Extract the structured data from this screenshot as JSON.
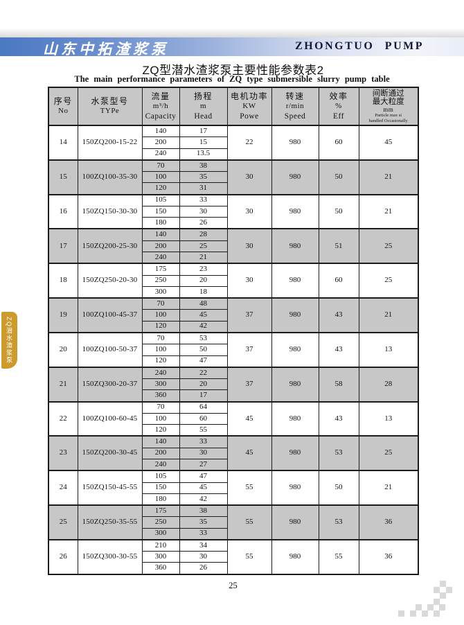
{
  "page": {
    "brand_cn": "山东中拓渣浆泵",
    "brand_en": "ZHONGTUO PUMP",
    "title_cn": "ZQ型潜水渣浆泵主要性能参数表2",
    "title_en": "The main performance parameters of ZQ type submersible slurry pump table",
    "side_tab": "ZQ潜水渣浆泵",
    "page_number": "25"
  },
  "colors": {
    "bar_blue": "#4a78c2",
    "header_gray": "#c7c7c7",
    "tab_orange": "#cd9a2e",
    "motif_gray": "#d9d9d9",
    "brand_en_navy": "#14163a"
  },
  "table": {
    "headers": [
      {
        "key": "no",
        "lines": [
          "序号",
          "No"
        ]
      },
      {
        "key": "type",
        "lines": [
          "水泵型号",
          "TYPe"
        ]
      },
      {
        "key": "capacity",
        "lines": [
          "流量",
          "m³/h",
          "Capacity"
        ]
      },
      {
        "key": "head",
        "lines": [
          "扬程",
          "m",
          "Head"
        ]
      },
      {
        "key": "power",
        "lines": [
          "电机功率",
          "KW",
          "Powe"
        ],
        "bold": true
      },
      {
        "key": "speed",
        "lines": [
          "转速",
          "r/min",
          "Speed"
        ]
      },
      {
        "key": "eff",
        "lines": [
          "效率",
          "%",
          "Eff"
        ]
      },
      {
        "key": "particle",
        "lines": [
          "间断通过",
          "最大粒度",
          "mm"
        ],
        "small_lines": [
          "Particle max si",
          "handled Occasionally"
        ],
        "bold": true
      }
    ],
    "rows": [
      {
        "no": "14",
        "type": "150ZQ200-15-22",
        "capacities": [
          "140",
          "200",
          "240"
        ],
        "heads": [
          "17",
          "15",
          "13.5"
        ],
        "power": "22",
        "speed": "980",
        "eff": "60",
        "particle": "45",
        "shaded": false
      },
      {
        "no": "15",
        "type": "100ZQ100-35-30",
        "capacities": [
          "70",
          "100",
          "120"
        ],
        "heads": [
          "38",
          "35",
          "31"
        ],
        "power": "30",
        "speed": "980",
        "eff": "50",
        "particle": "21",
        "shaded": true
      },
      {
        "no": "16",
        "type": "150ZQ150-30-30",
        "capacities": [
          "105",
          "150",
          "180"
        ],
        "heads": [
          "33",
          "30",
          "26"
        ],
        "power": "30",
        "speed": "980",
        "eff": "50",
        "particle": "21",
        "shaded": false
      },
      {
        "no": "17",
        "type": "150ZQ200-25-30",
        "capacities": [
          "140",
          "200",
          "240"
        ],
        "heads": [
          "28",
          "25",
          "21"
        ],
        "power": "30",
        "speed": "980",
        "eff": "51",
        "particle": "25",
        "shaded": true
      },
      {
        "no": "18",
        "type": "150ZQ250-20-30",
        "capacities": [
          "175",
          "250",
          "300"
        ],
        "heads": [
          "23",
          "20",
          "18"
        ],
        "power": "30",
        "speed": "980",
        "eff": "60",
        "particle": "25",
        "shaded": false
      },
      {
        "no": "19",
        "type": "100ZQ100-45-37",
        "capacities": [
          "70",
          "100",
          "120"
        ],
        "heads": [
          "48",
          "45",
          "42"
        ],
        "power": "37",
        "speed": "980",
        "eff": "43",
        "particle": "21",
        "shaded": true
      },
      {
        "no": "20",
        "type": "100ZQ100-50-37",
        "capacities": [
          "70",
          "100",
          "120"
        ],
        "heads": [
          "53",
          "50",
          "47"
        ],
        "power": "37",
        "speed": "980",
        "eff": "43",
        "particle": "13",
        "shaded": false
      },
      {
        "no": "21",
        "type": "150ZQ300-20-37",
        "capacities": [
          "240",
          "300",
          "360"
        ],
        "heads": [
          "22",
          "20",
          "17"
        ],
        "power": "37",
        "speed": "980",
        "eff": "58",
        "particle": "28",
        "shaded": true
      },
      {
        "no": "22",
        "type": "100ZQ100-60-45",
        "capacities": [
          "70",
          "100",
          "120"
        ],
        "heads": [
          "64",
          "60",
          "55"
        ],
        "power": "45",
        "speed": "980",
        "eff": "43",
        "particle": "13",
        "shaded": false
      },
      {
        "no": "23",
        "type": "150ZQ200-30-45",
        "capacities": [
          "140",
          "200",
          "240"
        ],
        "heads": [
          "33",
          "30",
          "27"
        ],
        "power": "45",
        "speed": "980",
        "eff": "53",
        "particle": "25",
        "shaded": true
      },
      {
        "no": "24",
        "type": "150ZQ150-45-55",
        "capacities": [
          "105",
          "150",
          "180"
        ],
        "heads": [
          "47",
          "45",
          "42"
        ],
        "power": "55",
        "speed": "980",
        "eff": "50",
        "particle": "21",
        "shaded": false
      },
      {
        "no": "25",
        "type": "150ZQ250-35-55",
        "capacities": [
          "175",
          "250",
          "300"
        ],
        "heads": [
          "38",
          "35",
          "33"
        ],
        "power": "55",
        "speed": "980",
        "eff": "53",
        "particle": "36",
        "shaded": true
      },
      {
        "no": "26",
        "type": "150ZQ300-30-55",
        "capacities": [
          "210",
          "300",
          "360"
        ],
        "heads": [
          "34",
          "30",
          "26"
        ],
        "power": "55",
        "speed": "980",
        "eff": "55",
        "particle": "36",
        "shaded": false
      }
    ]
  }
}
